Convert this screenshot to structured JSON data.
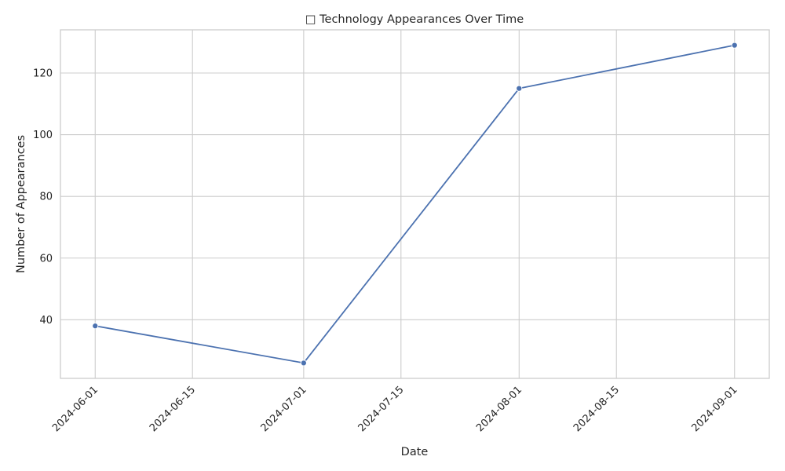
{
  "chart_data": {
    "type": "line",
    "title": "□ Technology Appearances Over Time",
    "xlabel": "Date",
    "ylabel": "Number of Appearances",
    "x_ticks": [
      "2024-06-01",
      "2024-06-15",
      "2024-07-01",
      "2024-07-15",
      "2024-08-01",
      "2024-08-15",
      "2024-09-01"
    ],
    "y_ticks": [
      40,
      60,
      80,
      100,
      120
    ],
    "xlim": [
      "2024-05-27",
      "2024-09-06"
    ],
    "ylim": [
      21,
      134
    ],
    "grid": true,
    "series": [
      {
        "color": "#4c72b0",
        "x": [
          "2024-06-01",
          "2024-07-01",
          "2024-08-01",
          "2024-09-01"
        ],
        "values": [
          38,
          26,
          115,
          129
        ]
      }
    ]
  }
}
